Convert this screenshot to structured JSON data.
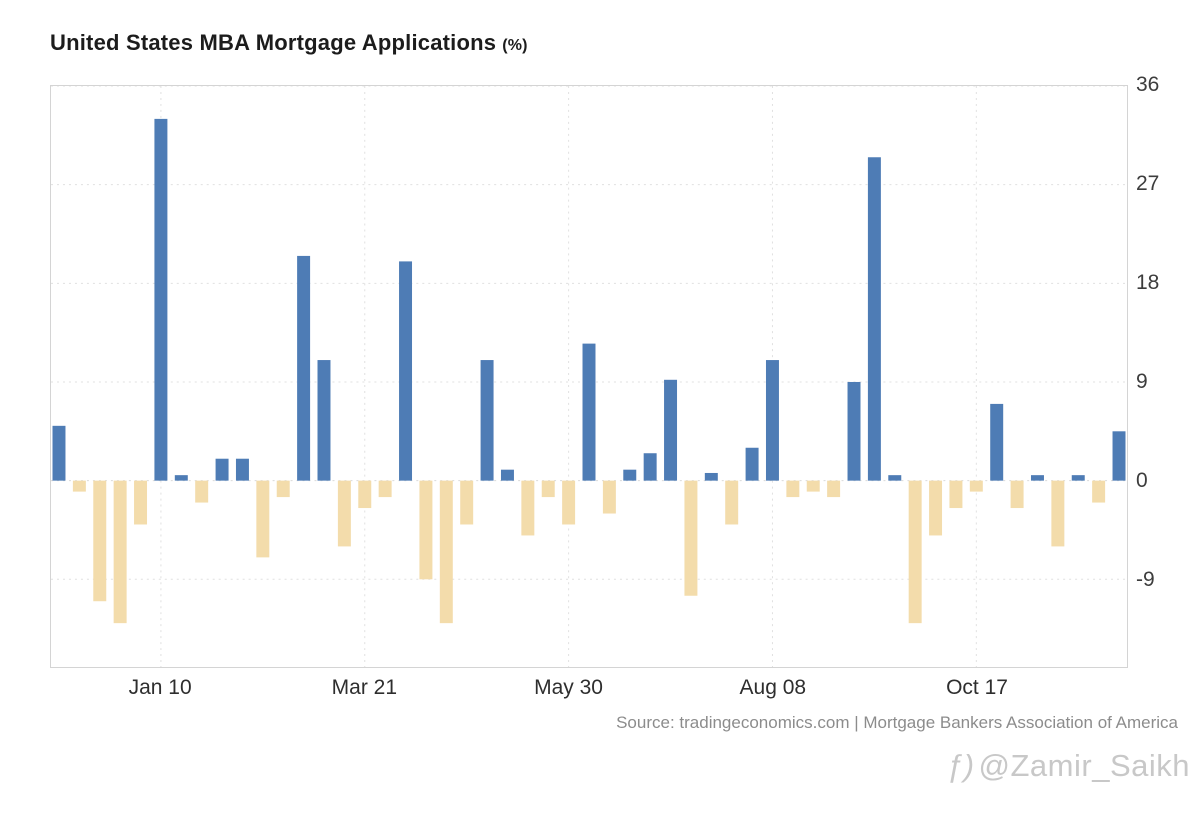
{
  "title": {
    "main": "United States MBA Mortgage Applications",
    "suffix": "(%)"
  },
  "source": "Source: tradingeconomics.com | Mortgage Bankers Association of America",
  "watermark": "@Zamir_Saikh",
  "icons": {
    "watermark": "ƒ)"
  },
  "chart_data": {
    "type": "bar",
    "title": "United States MBA Mortgage Applications (%)",
    "xlabel": "",
    "ylabel": "",
    "ylim": [
      -17,
      36
    ],
    "gridlines": [
      36,
      27,
      18,
      9,
      0,
      -9
    ],
    "grid": true,
    "legend": "none",
    "colors": {
      "positive": "#4e7cb5",
      "negative": "#f3dcab"
    },
    "x_tick_positions": [
      5,
      15,
      25,
      35,
      45
    ],
    "x_tick_labels": [
      "Jan 10",
      "Mar 21",
      "May 30",
      "Aug 08",
      "Oct 17"
    ],
    "values": [
      5,
      -1,
      -11,
      -13,
      -4,
      33,
      0.5,
      -2,
      2,
      2,
      -7,
      -1.5,
      20.5,
      11,
      -6,
      -2.5,
      -1.5,
      20,
      -9,
      -13,
      -4,
      11,
      1,
      -5,
      -1.5,
      -4,
      12.5,
      -3,
      1,
      2.5,
      9.2,
      -10.5,
      0.7,
      -4,
      3,
      11,
      -1.5,
      -1,
      -1.5,
      9,
      29.5,
      0.5,
      -13,
      -5,
      -2.5,
      -1,
      7,
      -2.5,
      0.5,
      -6,
      0.5,
      -2,
      4.5
    ]
  }
}
